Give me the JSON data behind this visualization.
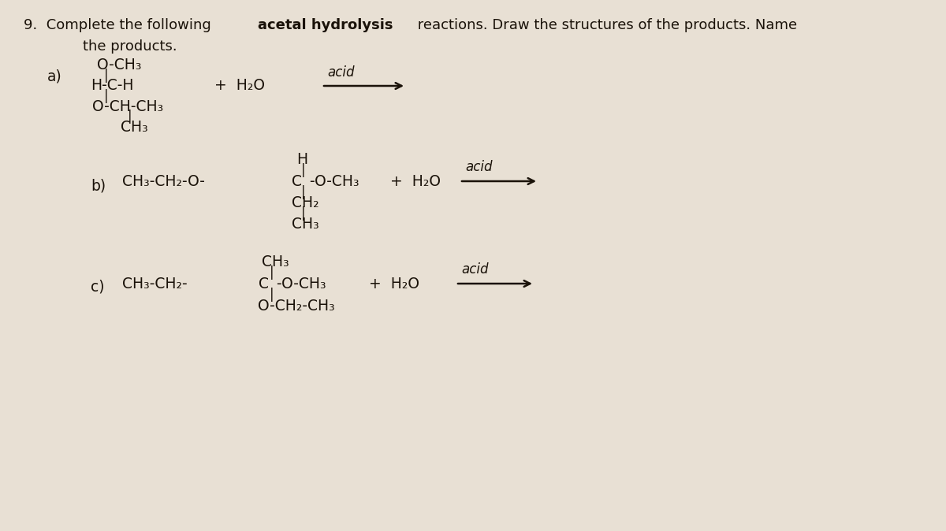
{
  "bg_color": "#e8e0d4",
  "text_color": "#1a1209",
  "fig_width": 12.0,
  "fig_height": 6.74,
  "dpi": 100,
  "title_normal1": "9.  Complete the following ",
  "title_bold": "acetal hydrolysis",
  "title_normal2": " reactions. Draw the structures of the products. Name",
  "title_line2": "    the products.",
  "items": {
    "a_label": "a)",
    "a_top": "O-CH₃",
    "a_mid": "H-C-H",
    "a_bot": "O-CH-CH₃",
    "a_bot2": "CH₃",
    "a_plus": "+ H₂O",
    "a_acid": "acid",
    "b_label": "b)",
    "b_top": "H",
    "b_mid": "CH₃-CH₂-O- C -O-CH₃",
    "b_ch2": "CH₂",
    "b_ch3": "CH₃",
    "b_plus": "+ H₂O",
    "b_acid": "acid",
    "c_label": "c)",
    "c_top": "CH₃",
    "c_mid": "CH₃-CH₂-C-O-CH₃",
    "c_bot": "O-CH₂-CH₃",
    "c_plus": "+ H₂O",
    "c_acid": "acid"
  }
}
